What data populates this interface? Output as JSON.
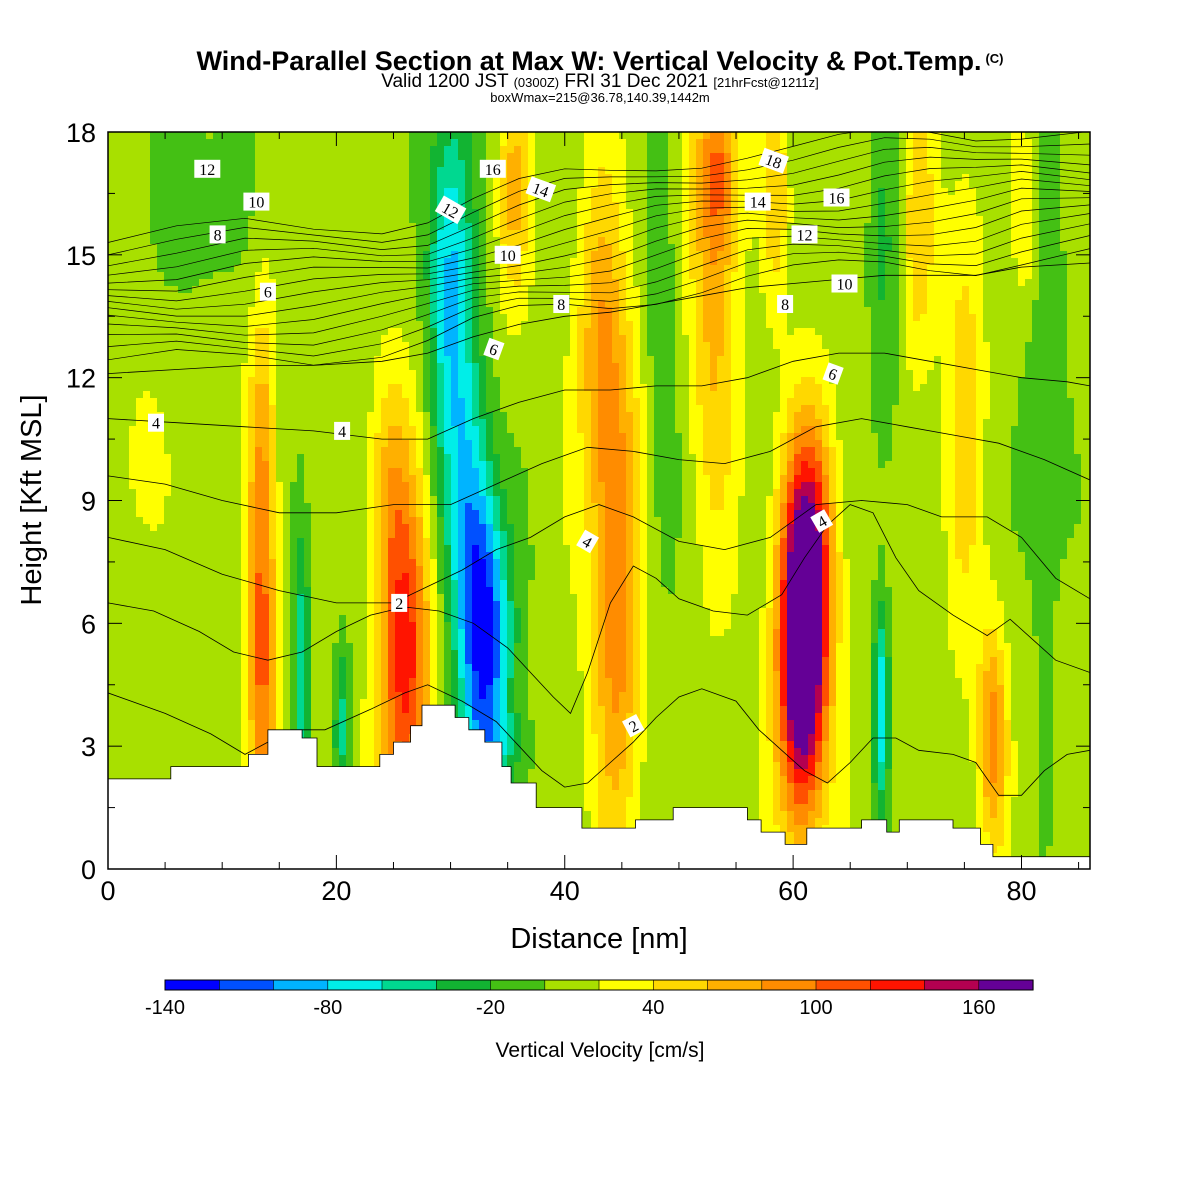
{
  "header": {
    "title": "Wind-Parallel Section at Max W: Vertical Velocity & Pot.Temp.",
    "copyright": "(C)",
    "valid_prefix": "Valid 1200 JST",
    "valid_utc": "(0300Z)",
    "valid_date": "FRI 31 Dec 2021",
    "forecast_info": "[21hrFcst@1211z]",
    "box_info": "boxWmax=215@36.78,140.39,1442m"
  },
  "chart_data": {
    "type": "heatmap",
    "xlabel": "Distance [nm]",
    "ylabel": "Height [Kft MSL]",
    "xlim": [
      0,
      86
    ],
    "ylim": [
      0,
      18
    ],
    "x_ticks": [
      "0",
      "20",
      "40",
      "60",
      "80"
    ],
    "y_ticks": [
      "0",
      "3",
      "6",
      "9",
      "12",
      "15",
      "18"
    ],
    "colorbar": {
      "label": "Vertical Velocity [cm/s]",
      "tick_labels": [
        "-140",
        "-80",
        "-20",
        "40",
        "100",
        "160"
      ],
      "colors": [
        "#0000ff",
        "#0050ff",
        "#00b4ff",
        "#00eee8",
        "#00d890",
        "#12b432",
        "#44c014",
        "#a8e000",
        "#ffff00",
        "#ffd800",
        "#ffb000",
        "#ff8c00",
        "#ff5000",
        "#ff1400",
        "#b40050",
        "#640096"
      ]
    },
    "terrain_kft": [
      [
        0,
        2.2
      ],
      [
        5.5,
        2.2
      ],
      [
        5.5,
        2.5
      ],
      [
        12.3,
        2.5
      ],
      [
        12.3,
        2.8
      ],
      [
        14,
        2.8
      ],
      [
        14,
        3.4
      ],
      [
        17,
        3.4
      ],
      [
        17,
        3.2
      ],
      [
        18.3,
        3.2
      ],
      [
        18.3,
        2.5
      ],
      [
        23.8,
        2.5
      ],
      [
        23.8,
        2.8
      ],
      [
        25,
        2.8
      ],
      [
        25,
        3.1
      ],
      [
        26.5,
        3.1
      ],
      [
        26.5,
        3.5
      ],
      [
        27.5,
        3.5
      ],
      [
        27.5,
        4.0
      ],
      [
        30.4,
        4.0
      ],
      [
        30.4,
        3.7
      ],
      [
        31.6,
        3.7
      ],
      [
        31.6,
        3.4
      ],
      [
        33,
        3.4
      ],
      [
        33,
        3.1
      ],
      [
        34.5,
        3.1
      ],
      [
        34.5,
        2.5
      ],
      [
        35.3,
        2.5
      ],
      [
        35.3,
        2.1
      ],
      [
        37.5,
        2.1
      ],
      [
        37.5,
        1.5
      ],
      [
        41.5,
        1.5
      ],
      [
        41.5,
        1.0
      ],
      [
        46.2,
        1.0
      ],
      [
        46.2,
        1.2
      ],
      [
        49.5,
        1.2
      ],
      [
        49.5,
        1.5
      ],
      [
        56,
        1.5
      ],
      [
        56,
        1.2
      ],
      [
        57.2,
        1.2
      ],
      [
        57.2,
        0.9
      ],
      [
        59.3,
        0.9
      ],
      [
        59.3,
        0.6
      ],
      [
        61.2,
        0.6
      ],
      [
        61.2,
        1.0
      ],
      [
        66,
        1.0
      ],
      [
        66,
        1.2
      ],
      [
        68.2,
        1.2
      ],
      [
        68.2,
        0.9
      ],
      [
        69.3,
        0.9
      ],
      [
        69.3,
        1.2
      ],
      [
        74,
        1.2
      ],
      [
        74,
        1.0
      ],
      [
        76.4,
        1.0
      ],
      [
        76.4,
        0.6
      ],
      [
        77.5,
        0.6
      ],
      [
        77.5,
        0.3
      ],
      [
        86,
        0.3
      ]
    ],
    "velocity_features": [
      {
        "x": 13.5,
        "y": 5.0,
        "sx": 0.9,
        "sy": 3.8,
        "amp": 95
      },
      {
        "x": 13.5,
        "y": 11.0,
        "sx": 0.8,
        "sy": 2.5,
        "amp": 35
      },
      {
        "x": 26.0,
        "y": 5.0,
        "sx": 1.6,
        "sy": 3.2,
        "amp": 120
      },
      {
        "x": 24.5,
        "y": 9.5,
        "sx": 1.2,
        "sy": 2.0,
        "amp": 40
      },
      {
        "x": 33.0,
        "y": 5.5,
        "sx": 1.6,
        "sy": 2.3,
        "amp": -135
      },
      {
        "x": 31.8,
        "y": 9.0,
        "sx": 1.5,
        "sy": 2.5,
        "amp": -70
      },
      {
        "x": 30.0,
        "y": 14.5,
        "sx": 1.4,
        "sy": 3.3,
        "amp": -95
      },
      {
        "x": 33.5,
        "y": 2.8,
        "sx": 3.0,
        "sy": 0.8,
        "amp": -30
      },
      {
        "x": 44.5,
        "y": 7.0,
        "sx": 1.5,
        "sy": 4.3,
        "amp": 90
      },
      {
        "x": 43.0,
        "y": 13.0,
        "sx": 1.4,
        "sy": 2.8,
        "amp": 55
      },
      {
        "x": 35.5,
        "y": 16.5,
        "sx": 1.0,
        "sy": 2.0,
        "amp": 55
      },
      {
        "x": 53.0,
        "y": 14.0,
        "sx": 1.5,
        "sy": 4.2,
        "amp": 55
      },
      {
        "x": 53.5,
        "y": 17.0,
        "sx": 1.2,
        "sy": 1.4,
        "amp": 65
      },
      {
        "x": 60.8,
        "y": 5.0,
        "sx": 1.5,
        "sy": 2.8,
        "amp": 200
      },
      {
        "x": 61.5,
        "y": 8.0,
        "sx": 1.6,
        "sy": 2.3,
        "amp": 90
      },
      {
        "x": 75.0,
        "y": 11.5,
        "sx": 1.2,
        "sy": 4.2,
        "amp": 40
      },
      {
        "x": 77.5,
        "y": 3.3,
        "sx": 0.9,
        "sy": 1.9,
        "amp": 80
      },
      {
        "x": 67.7,
        "y": 4.0,
        "sx": 0.5,
        "sy": 1.8,
        "amp": -85
      },
      {
        "x": 17.0,
        "y": 4.5,
        "sx": 0.5,
        "sy": 2.6,
        "amp": -70
      },
      {
        "x": 20.5,
        "y": 3.5,
        "sx": 0.5,
        "sy": 1.6,
        "amp": -55
      },
      {
        "x": 58.5,
        "y": 16.5,
        "sx": 0.8,
        "sy": 2.0,
        "amp": 45
      },
      {
        "x": 71.0,
        "y": 15.5,
        "sx": 1.0,
        "sy": 2.5,
        "amp": 45
      },
      {
        "x": 80.5,
        "y": 16.0,
        "sx": 0.8,
        "sy": 1.5,
        "amp": 40
      },
      {
        "x": 48.5,
        "y": 12.0,
        "sx": 1.0,
        "sy": 4.0,
        "amp": -30
      },
      {
        "x": 68.0,
        "y": 14.0,
        "sx": 1.0,
        "sy": 4.0,
        "amp": -30
      },
      {
        "x": 82.0,
        "y": 11.0,
        "sx": 1.5,
        "sy": 5.0,
        "amp": -25
      },
      {
        "x": 8.0,
        "y": 16.5,
        "sx": 3.0,
        "sy": 1.8,
        "amp": -25
      },
      {
        "x": 3.0,
        "y": 10.0,
        "sx": 1.0,
        "sy": 1.2,
        "amp": 30
      }
    ],
    "velocity_background_cms": 10,
    "theta_contours": [
      {
        "label": "2",
        "points": [
          [
            0,
            4.3
          ],
          [
            5,
            3.8
          ],
          [
            9,
            3.3
          ],
          [
            12,
            2.8
          ],
          [
            14,
            3.1
          ],
          [
            16,
            3.4
          ],
          [
            19,
            3.4
          ],
          [
            23,
            3.9
          ],
          [
            26,
            4.3
          ],
          [
            28,
            4.5
          ],
          [
            31,
            4.1
          ],
          [
            34,
            3.6
          ],
          [
            36,
            3.0
          ],
          [
            38,
            2.4
          ],
          [
            40,
            2.0
          ],
          [
            42,
            2.1
          ],
          [
            44,
            2.6
          ],
          [
            46,
            3.1
          ],
          [
            48,
            3.7
          ],
          [
            50,
            4.2
          ],
          [
            52,
            4.4
          ],
          [
            55,
            4.1
          ],
          [
            57,
            3.4
          ],
          [
            59,
            2.9
          ],
          [
            61,
            2.4
          ],
          [
            63,
            2.1
          ],
          [
            65,
            2.6
          ],
          [
            67,
            3.2
          ],
          [
            69,
            3.2
          ],
          [
            71,
            2.9
          ],
          [
            74,
            2.8
          ],
          [
            76,
            2.6
          ],
          [
            78,
            1.8
          ],
          [
            80,
            1.8
          ],
          [
            82,
            2.4
          ],
          [
            84,
            2.8
          ],
          [
            86,
            2.9
          ]
        ]
      },
      {
        "label": "",
        "points": [
          [
            0,
            6.5
          ],
          [
            4,
            6.3
          ],
          [
            8,
            5.8
          ],
          [
            11,
            5.3
          ],
          [
            14,
            5.1
          ],
          [
            17,
            5.3
          ],
          [
            20,
            5.8
          ],
          [
            23,
            6.2
          ],
          [
            26,
            6.4
          ],
          [
            29,
            6.3
          ],
          [
            32,
            6.0
          ],
          [
            35,
            5.4
          ],
          [
            37,
            4.8
          ],
          [
            39,
            4.2
          ],
          [
            40.5,
            3.8
          ],
          [
            42,
            4.8
          ],
          [
            44,
            6.5
          ],
          [
            46,
            7.4
          ],
          [
            48,
            7.1
          ],
          [
            50,
            6.6
          ],
          [
            53,
            6.3
          ],
          [
            56,
            6.2
          ],
          [
            59,
            6.7
          ],
          [
            61,
            7.6
          ],
          [
            63,
            8.4
          ],
          [
            65,
            8.9
          ],
          [
            67,
            8.7
          ],
          [
            69,
            7.6
          ],
          [
            71,
            6.8
          ],
          [
            74,
            6.2
          ],
          [
            77,
            5.7
          ],
          [
            79,
            6.1
          ],
          [
            81,
            5.6
          ],
          [
            83,
            5.1
          ],
          [
            86,
            4.8
          ]
        ]
      },
      {
        "label": "",
        "points": [
          [
            0,
            8.1
          ],
          [
            5,
            7.8
          ],
          [
            10,
            7.2
          ],
          [
            15,
            6.8
          ],
          [
            20,
            6.5
          ],
          [
            25,
            6.5
          ],
          [
            28,
            6.9
          ],
          [
            31,
            7.3
          ],
          [
            34,
            7.8
          ],
          [
            37,
            8.1
          ],
          [
            40,
            8.6
          ],
          [
            43,
            8.9
          ],
          [
            46,
            8.6
          ],
          [
            50,
            8.0
          ],
          [
            54,
            7.8
          ],
          [
            58,
            8.1
          ],
          [
            62,
            8.9
          ],
          [
            66,
            9.0
          ],
          [
            70,
            8.9
          ],
          [
            73,
            8.6
          ],
          [
            77,
            8.6
          ],
          [
            80,
            8.1
          ],
          [
            83,
            7.1
          ],
          [
            86,
            6.6
          ]
        ]
      },
      {
        "label": "",
        "points": [
          [
            0,
            9.6
          ],
          [
            5,
            9.4
          ],
          [
            10,
            9.0
          ],
          [
            15,
            8.7
          ],
          [
            20,
            8.7
          ],
          [
            25,
            8.9
          ],
          [
            30,
            8.9
          ],
          [
            34,
            9.4
          ],
          [
            38,
            9.9
          ],
          [
            42,
            10.3
          ],
          [
            46,
            10.2
          ],
          [
            50,
            10.0
          ],
          [
            54,
            9.9
          ],
          [
            58,
            10.2
          ],
          [
            62,
            10.8
          ],
          [
            66,
            11.0
          ],
          [
            70,
            10.8
          ],
          [
            74,
            10.6
          ],
          [
            78,
            10.4
          ],
          [
            82,
            10.0
          ],
          [
            86,
            9.5
          ]
        ]
      },
      {
        "label": "",
        "points": [
          [
            0,
            11.0
          ],
          [
            6,
            10.9
          ],
          [
            12,
            10.8
          ],
          [
            18,
            10.7
          ],
          [
            24,
            10.5
          ],
          [
            28,
            10.5
          ],
          [
            32,
            11.0
          ],
          [
            36,
            11.4
          ],
          [
            40,
            11.7
          ],
          [
            44,
            11.7
          ],
          [
            48,
            11.8
          ],
          [
            52,
            11.8
          ],
          [
            56,
            12.0
          ],
          [
            60,
            12.4
          ],
          [
            64,
            12.6
          ],
          [
            68,
            12.6
          ],
          [
            72,
            12.4
          ],
          [
            76,
            12.2
          ],
          [
            80,
            12.0
          ],
          [
            84,
            11.9
          ],
          [
            86,
            11.8
          ]
        ]
      },
      {
        "label": "",
        "points": [
          [
            0,
            12.1
          ],
          [
            6,
            12.2
          ],
          [
            12,
            12.3
          ],
          [
            18,
            12.3
          ],
          [
            24,
            12.4
          ],
          [
            28,
            12.6
          ],
          [
            32,
            13.0
          ],
          [
            36,
            13.3
          ],
          [
            40,
            13.5
          ],
          [
            44,
            13.6
          ],
          [
            48,
            13.8
          ],
          [
            52,
            14.0
          ],
          [
            56,
            14.2
          ],
          [
            60,
            14.3
          ],
          [
            64,
            14.4
          ],
          [
            68,
            14.5
          ],
          [
            72,
            14.5
          ],
          [
            76,
            14.5
          ],
          [
            80,
            14.7
          ],
          [
            86,
            14.8
          ]
        ]
      }
    ],
    "contour_labels": [
      {
        "text": "2",
        "x": 25.5,
        "y": 6.5,
        "angle": 0
      },
      {
        "text": "2",
        "x": 46.0,
        "y": 3.5,
        "angle": -28
      },
      {
        "text": "4",
        "x": 4.2,
        "y": 10.9,
        "angle": 0
      },
      {
        "text": "4",
        "x": 20.5,
        "y": 10.7,
        "angle": 0
      },
      {
        "text": "4",
        "x": 42.0,
        "y": 8.0,
        "angle": 30
      },
      {
        "text": "4",
        "x": 62.5,
        "y": 8.5,
        "angle": -30
      },
      {
        "text": "6",
        "x": 14.0,
        "y": 14.1,
        "angle": 0
      },
      {
        "text": "6",
        "x": 33.8,
        "y": 12.7,
        "angle": 20
      },
      {
        "text": "6",
        "x": 63.5,
        "y": 12.1,
        "angle": 20
      },
      {
        "text": "8",
        "x": 9.6,
        "y": 15.5,
        "angle": 0
      },
      {
        "text": "8",
        "x": 39.7,
        "y": 13.8,
        "angle": 0
      },
      {
        "text": "8",
        "x": 59.3,
        "y": 13.8,
        "angle": 0
      },
      {
        "text": "10",
        "x": 13.0,
        "y": 16.3,
        "angle": 0
      },
      {
        "text": "10",
        "x": 35.0,
        "y": 15.0,
        "angle": 0
      },
      {
        "text": "10",
        "x": 64.5,
        "y": 14.3,
        "angle": 0
      },
      {
        "text": "12",
        "x": 8.7,
        "y": 17.1,
        "angle": 0
      },
      {
        "text": "12",
        "x": 30.0,
        "y": 16.1,
        "angle": 30
      },
      {
        "text": "12",
        "x": 61.0,
        "y": 15.5,
        "angle": 0
      },
      {
        "text": "14",
        "x": 37.9,
        "y": 16.6,
        "angle": 20
      },
      {
        "text": "14",
        "x": 56.9,
        "y": 16.3,
        "angle": 0
      },
      {
        "text": "16",
        "x": 33.7,
        "y": 17.1,
        "angle": 0
      },
      {
        "text": "16",
        "x": 63.8,
        "y": 16.4,
        "angle": 0
      },
      {
        "text": "18",
        "x": 58.3,
        "y": 17.3,
        "angle": 20
      }
    ]
  }
}
